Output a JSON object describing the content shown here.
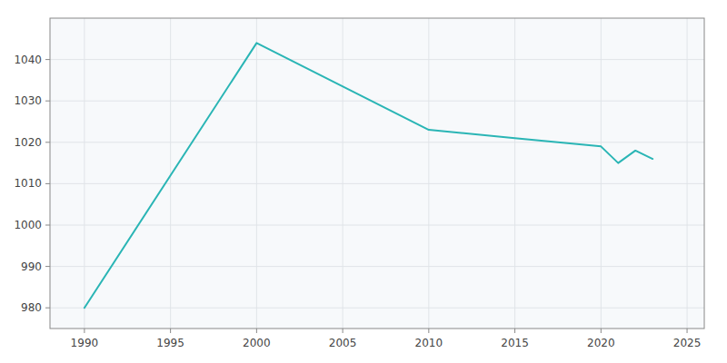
{
  "chart_data": {
    "type": "line",
    "x": [
      1990,
      2000,
      2010,
      2015,
      2020,
      2021,
      2022,
      2023
    ],
    "values": [
      980,
      1044,
      1023,
      1021,
      1019,
      1015,
      1018,
      1016
    ],
    "color": "#2ab5b5",
    "xlim": [
      1988,
      2026
    ],
    "ylim": [
      975,
      1050
    ],
    "xticks": [
      1990,
      1995,
      2000,
      2005,
      2010,
      2015,
      2020,
      2025
    ],
    "yticks": [
      980,
      990,
      1000,
      1010,
      1020,
      1030,
      1040
    ],
    "grid": true
  }
}
